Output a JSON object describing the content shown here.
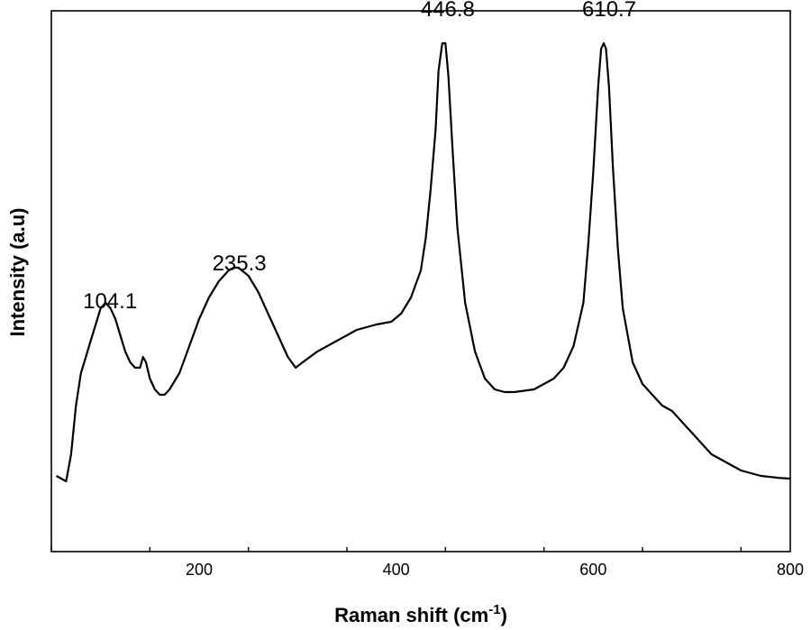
{
  "chart_data": {
    "type": "line",
    "xlabel": "Raman shift (cm",
    "xlabel_sup": "-1",
    "xlabel_end": ")",
    "ylabel": "Intensity (a.u)",
    "xlim": [
      50,
      800
    ],
    "ylim": [
      0,
      100
    ],
    "xticks": [
      200,
      400,
      600,
      800
    ],
    "yticks_shown": false,
    "grid": false,
    "line_color": "#000000",
    "annotations": [
      {
        "text": "104.1",
        "x": 104.1,
        "y": 44
      },
      {
        "text": "235.3",
        "x": 235.3,
        "y": 51
      },
      {
        "text": "446.8",
        "x": 446.8,
        "y": 98
      },
      {
        "text": "610.7",
        "x": 610.7,
        "y": 98
      }
    ],
    "series": [
      {
        "x": [
          55,
          65,
          70,
          75,
          80,
          85,
          90,
          95,
          100,
          105,
          110,
          115,
          120,
          125,
          130,
          135,
          140,
          143,
          146,
          150,
          155,
          160,
          165,
          170,
          180,
          190,
          200,
          210,
          220,
          230,
          235,
          240,
          250,
          260,
          270,
          280,
          290,
          298,
          305,
          320,
          340,
          360,
          380,
          395,
          405,
          415,
          425,
          430,
          435,
          440,
          443,
          446.8,
          450,
          453,
          457,
          462,
          470,
          480,
          490,
          500,
          510,
          520,
          540,
          560,
          570,
          580,
          590,
          595,
          600,
          605,
          608,
          610.7,
          613,
          616,
          620,
          625,
          630,
          640,
          650,
          660,
          670,
          680,
          690,
          700,
          710,
          720,
          730,
          740,
          750,
          760,
          770,
          780,
          790,
          800
        ],
        "y": [
          14,
          13,
          18,
          27,
          33,
          36,
          39,
          42,
          45,
          46,
          45,
          43,
          40,
          37,
          35,
          34,
          34,
          36,
          35,
          32,
          30,
          29,
          29,
          30,
          33,
          38,
          43,
          47,
          50,
          52,
          52.5,
          52.5,
          51,
          48,
          44,
          40,
          36,
          34,
          35,
          37,
          39,
          41,
          42,
          42.5,
          44,
          47,
          52,
          58,
          67,
          78,
          89,
          94,
          94,
          88,
          75,
          60,
          46,
          37,
          32,
          30,
          29.5,
          29.5,
          30,
          32,
          34,
          38,
          46,
          57,
          70,
          86,
          93,
          94,
          93,
          86,
          71,
          56,
          45,
          35,
          31,
          29,
          27,
          26,
          24,
          22,
          20,
          18,
          17,
          16,
          15,
          14.5,
          14,
          13.8,
          13.6,
          13.5
        ]
      }
    ]
  }
}
